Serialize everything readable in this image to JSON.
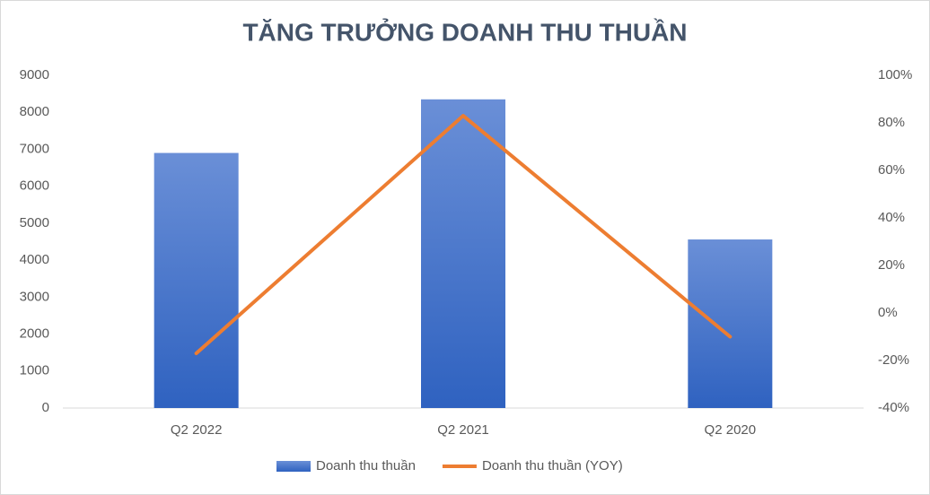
{
  "chart_data": {
    "type": "combo",
    "title": "TĂNG TRƯỞNG DOANH THU THUẦN",
    "categories": [
      "Q2 2022",
      "Q2 2021",
      "Q2 2020"
    ],
    "series": [
      {
        "name": "Doanh thu thuần",
        "type": "bar",
        "color": "#4472c4",
        "values": [
          6900,
          8350,
          4560
        ]
      },
      {
        "name": "Doanh thu thuần (YOY)",
        "type": "line",
        "color": "#ed7d31",
        "axis": "y2",
        "values": [
          -17,
          83,
          -10
        ]
      }
    ],
    "ylim": [
      0,
      9000
    ],
    "yticks": [
      0,
      1000,
      2000,
      3000,
      4000,
      5000,
      6000,
      7000,
      8000,
      9000
    ],
    "y2lim": [
      -40,
      100
    ],
    "y2ticks": [
      {
        "value": -40,
        "label": "-40%"
      },
      {
        "value": -20,
        "label": "-20%"
      },
      {
        "value": 0,
        "label": "0%"
      },
      {
        "value": 20,
        "label": "20%"
      },
      {
        "value": 40,
        "label": "40%"
      },
      {
        "value": 60,
        "label": "60%"
      },
      {
        "value": 80,
        "label": "80%"
      },
      {
        "value": 100,
        "label": "100%"
      }
    ],
    "grid": false,
    "legend": "bottom"
  }
}
